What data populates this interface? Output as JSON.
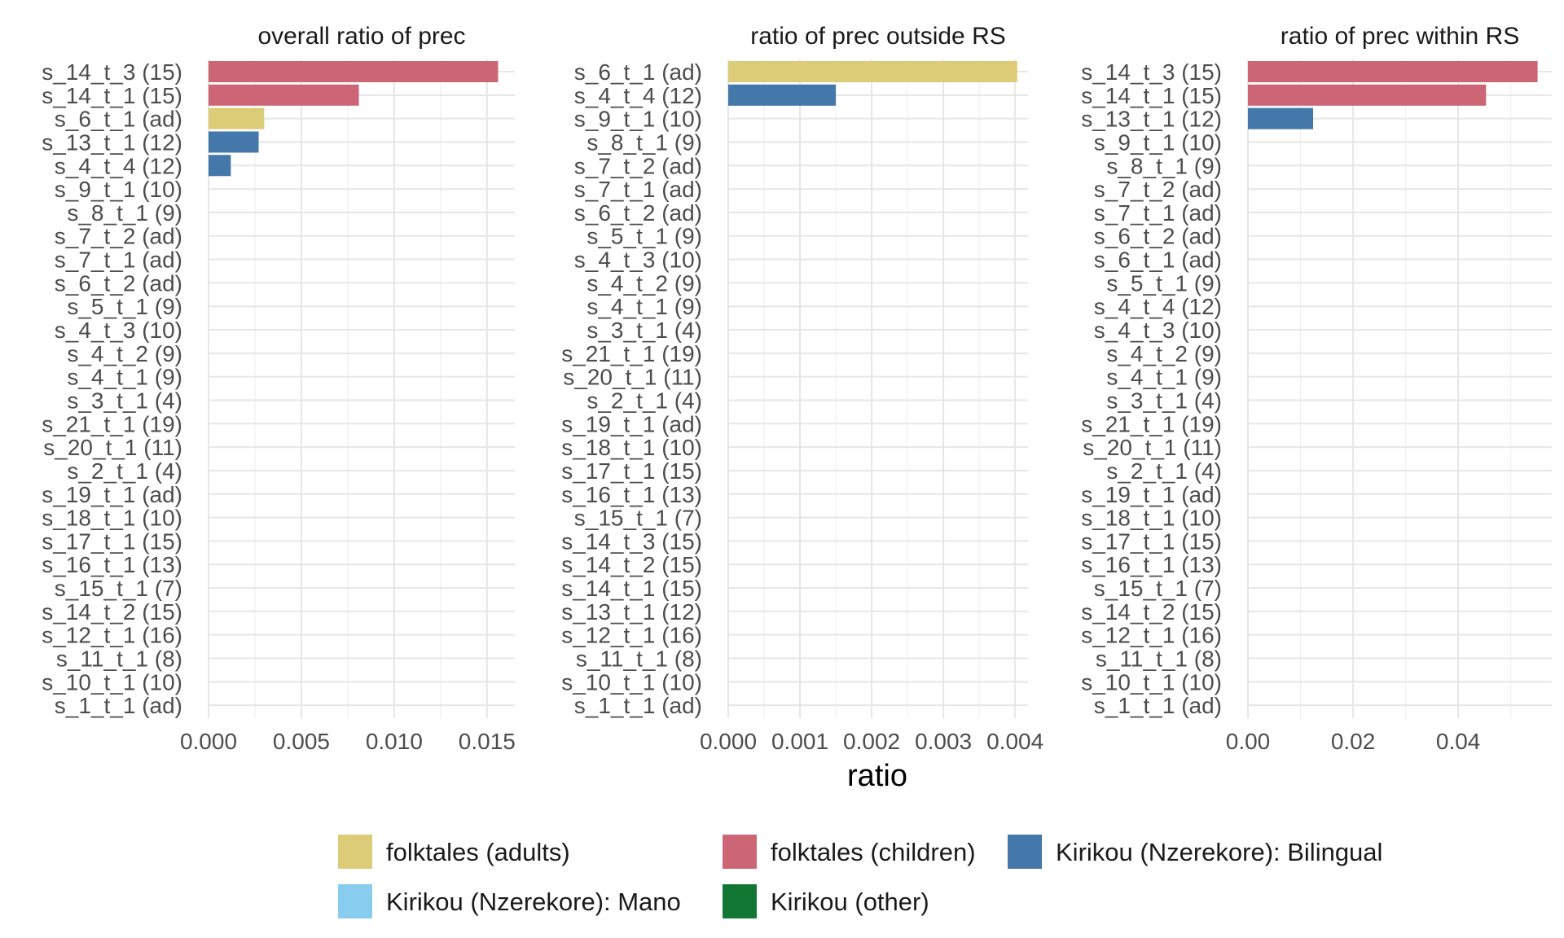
{
  "chart_data": {
    "type": "bar",
    "orientation": "horizontal",
    "xlabel": "ratio",
    "legend": {
      "placement": "bottom",
      "items": [
        {
          "label": "folktales (adults)",
          "color": "#DDCC77"
        },
        {
          "label": "folktales (children)",
          "color": "#CC6677"
        },
        {
          "label": "Kirikou (Nzerekore): Bilingual",
          "color": "#4477AA"
        },
        {
          "label": "Kirikou (Nzerekore): Mano",
          "color": "#88CCEE"
        },
        {
          "label": "Kirikou (other)",
          "color": "#117733"
        }
      ]
    },
    "grid": true,
    "panels": [
      {
        "title": "overall ratio of prec",
        "xlim": [
          0,
          0.0165
        ],
        "ticks": [
          0,
          0.005,
          0.01,
          0.015
        ],
        "tick_labels": [
          "0.000",
          "0.005",
          "0.010",
          "0.015"
        ],
        "categories": [
          "s_14_t_3 (15)",
          "s_14_t_1 (15)",
          "s_6_t_1 (ad)",
          "s_13_t_1 (12)",
          "s_4_t_4 (12)",
          "s_9_t_1 (10)",
          "s_8_t_1 (9)",
          "s_7_t_2 (ad)",
          "s_7_t_1 (ad)",
          "s_6_t_2 (ad)",
          "s_5_t_1 (9)",
          "s_4_t_3 (10)",
          "s_4_t_2 (9)",
          "s_4_t_1 (9)",
          "s_3_t_1 (4)",
          "s_21_t_1 (19)",
          "s_20_t_1 (11)",
          "s_2_t_1 (4)",
          "s_19_t_1 (ad)",
          "s_18_t_1 (10)",
          "s_17_t_1 (15)",
          "s_16_t_1 (13)",
          "s_15_t_1 (7)",
          "s_14_t_2 (15)",
          "s_12_t_1 (16)",
          "s_11_t_1 (8)",
          "s_10_t_1 (10)",
          "s_1_t_1 (ad)"
        ],
        "values": [
          0.0156,
          0.0081,
          0.003,
          0.0027,
          0.0012,
          0,
          0,
          0,
          0,
          0,
          0,
          0,
          0,
          0,
          0,
          0,
          0,
          0,
          0,
          0,
          0,
          0,
          0,
          0,
          0,
          0,
          0,
          0
        ],
        "groups": [
          "folktales (children)",
          "folktales (children)",
          "folktales (adults)",
          "Kirikou (Nzerekore): Bilingual",
          "Kirikou (Nzerekore): Bilingual"
        ]
      },
      {
        "title": "ratio of prec outside RS",
        "xlim": [
          0,
          0.00418
        ],
        "ticks": [
          0,
          0.001,
          0.002,
          0.003,
          0.004
        ],
        "tick_labels": [
          "0.000",
          "0.001",
          "0.002",
          "0.003",
          "0.004"
        ],
        "categories": [
          "s_6_t_1 (ad)",
          "s_4_t_4 (12)",
          "s_9_t_1 (10)",
          "s_8_t_1 (9)",
          "s_7_t_2 (ad)",
          "s_7_t_1 (ad)",
          "s_6_t_2 (ad)",
          "s_5_t_1 (9)",
          "s_4_t_3 (10)",
          "s_4_t_2 (9)",
          "s_4_t_1 (9)",
          "s_3_t_1 (4)",
          "s_21_t_1 (19)",
          "s_20_t_1 (11)",
          "s_2_t_1 (4)",
          "s_19_t_1 (ad)",
          "s_18_t_1 (10)",
          "s_17_t_1 (15)",
          "s_16_t_1 (13)",
          "s_15_t_1 (7)",
          "s_14_t_3 (15)",
          "s_14_t_2 (15)",
          "s_14_t_1 (15)",
          "s_13_t_1 (12)",
          "s_12_t_1 (16)",
          "s_11_t_1 (8)",
          "s_10_t_1 (10)",
          "s_1_t_1 (ad)"
        ],
        "values": [
          0.00403,
          0.0015,
          0,
          0,
          0,
          0,
          0,
          0,
          0,
          0,
          0,
          0,
          0,
          0,
          0,
          0,
          0,
          0,
          0,
          0,
          0,
          0,
          0,
          0,
          0,
          0,
          0,
          0
        ],
        "groups": [
          "folktales (adults)",
          "Kirikou (Nzerekore): Bilingual"
        ]
      },
      {
        "title": "ratio of prec within RS",
        "xlim": [
          0,
          0.0578
        ],
        "ticks": [
          0,
          0.02,
          0.04
        ],
        "tick_labels": [
          "0.00",
          "0.02",
          "0.04"
        ],
        "categories": [
          "s_14_t_3 (15)",
          "s_14_t_1 (15)",
          "s_13_t_1 (12)",
          "s_9_t_1 (10)",
          "s_8_t_1 (9)",
          "s_7_t_2 (ad)",
          "s_7_t_1 (ad)",
          "s_6_t_2 (ad)",
          "s_6_t_1 (ad)",
          "s_5_t_1 (9)",
          "s_4_t_4 (12)",
          "s_4_t_3 (10)",
          "s_4_t_2 (9)",
          "s_4_t_1 (9)",
          "s_3_t_1 (4)",
          "s_21_t_1 (19)",
          "s_20_t_1 (11)",
          "s_2_t_1 (4)",
          "s_19_t_1 (ad)",
          "s_18_t_1 (10)",
          "s_17_t_1 (15)",
          "s_16_t_1 (13)",
          "s_15_t_1 (7)",
          "s_14_t_2 (15)",
          "s_12_t_1 (16)",
          "s_11_t_1 (8)",
          "s_10_t_1 (10)",
          "s_1_t_1 (ad)"
        ],
        "values": [
          0.0551,
          0.0453,
          0.0124,
          0,
          0,
          0,
          0,
          0,
          0,
          0,
          0,
          0,
          0,
          0,
          0,
          0,
          0,
          0,
          0,
          0,
          0,
          0,
          0,
          0,
          0,
          0,
          0,
          0
        ],
        "groups": [
          "folktales (children)",
          "folktales (children)",
          "Kirikou (Nzerekore): Bilingual"
        ]
      }
    ]
  }
}
